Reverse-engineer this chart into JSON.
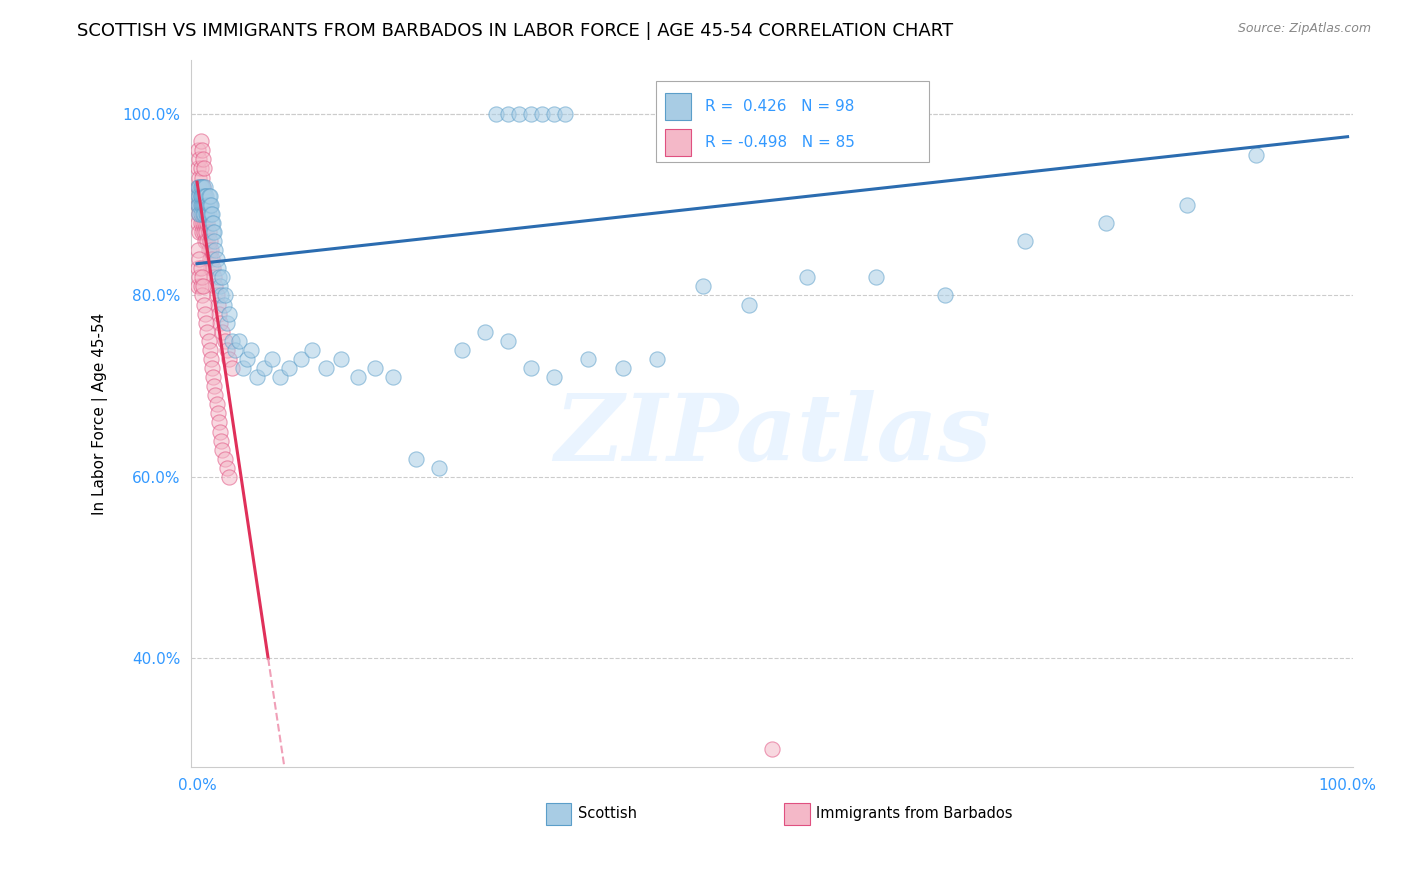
{
  "title": "SCOTTISH VS IMMIGRANTS FROM BARBADOS IN LABOR FORCE | AGE 45-54 CORRELATION CHART",
  "source": "Source: ZipAtlas.com",
  "ylabel": "In Labor Force | Age 45-54",
  "y_tick_labels": [
    "40.0%",
    "60.0%",
    "80.0%",
    "100.0%"
  ],
  "y_tick_values": [
    0.4,
    0.6,
    0.8,
    1.0
  ],
  "legend_label1": "Scottish",
  "legend_label2": "Immigrants from Barbados",
  "R1": 0.426,
  "N1": 98,
  "R2": -0.498,
  "N2": 85,
  "blue_color": "#a8cce4",
  "pink_color": "#f4b8c8",
  "blue_edge_color": "#5b9ec9",
  "pink_edge_color": "#e05080",
  "blue_line_color": "#2b6cb0",
  "pink_line_color": "#e0305a",
  "pink_line_dash_color": "#f0a0b8",
  "background_color": "#ffffff",
  "scatter_alpha": 0.55,
  "scatter_size": 120,
  "title_fontsize": 13,
  "blue_line_intercept": 0.835,
  "blue_line_slope": 0.14,
  "pink_line_intercept": 0.925,
  "pink_line_slope": -8.5,
  "blue_scatter_x": [
    0.001,
    0.001,
    0.001,
    0.002,
    0.002,
    0.002,
    0.002,
    0.003,
    0.003,
    0.003,
    0.003,
    0.003,
    0.004,
    0.004,
    0.004,
    0.005,
    0.005,
    0.005,
    0.005,
    0.006,
    0.006,
    0.006,
    0.007,
    0.007,
    0.007,
    0.008,
    0.008,
    0.008,
    0.009,
    0.009,
    0.01,
    0.01,
    0.01,
    0.011,
    0.011,
    0.012,
    0.012,
    0.013,
    0.013,
    0.014,
    0.014,
    0.015,
    0.015,
    0.016,
    0.017,
    0.018,
    0.019,
    0.02,
    0.021,
    0.022,
    0.023,
    0.024,
    0.026,
    0.028,
    0.03,
    0.033,
    0.036,
    0.04,
    0.043,
    0.047,
    0.052,
    0.058,
    0.065,
    0.072,
    0.08,
    0.09,
    0.1,
    0.112,
    0.125,
    0.14,
    0.155,
    0.17,
    0.19,
    0.21,
    0.23,
    0.25,
    0.27,
    0.29,
    0.31,
    0.34,
    0.37,
    0.4,
    0.44,
    0.48,
    0.53,
    0.59,
    0.65,
    0.72,
    0.79,
    0.86,
    0.26,
    0.27,
    0.28,
    0.29,
    0.3,
    0.31,
    0.32,
    0.92
  ],
  "blue_scatter_y": [
    0.92,
    0.9,
    0.91,
    0.91,
    0.9,
    0.92,
    0.89,
    0.91,
    0.9,
    0.92,
    0.89,
    0.91,
    0.9,
    0.92,
    0.91,
    0.9,
    0.91,
    0.89,
    0.92,
    0.9,
    0.91,
    0.89,
    0.9,
    0.92,
    0.91,
    0.89,
    0.9,
    0.91,
    0.9,
    0.89,
    0.9,
    0.91,
    0.89,
    0.9,
    0.91,
    0.89,
    0.9,
    0.88,
    0.89,
    0.87,
    0.88,
    0.87,
    0.86,
    0.85,
    0.84,
    0.83,
    0.82,
    0.81,
    0.8,
    0.82,
    0.79,
    0.8,
    0.77,
    0.78,
    0.75,
    0.74,
    0.75,
    0.72,
    0.73,
    0.74,
    0.71,
    0.72,
    0.73,
    0.71,
    0.72,
    0.73,
    0.74,
    0.72,
    0.73,
    0.71,
    0.72,
    0.71,
    0.62,
    0.61,
    0.74,
    0.76,
    0.75,
    0.72,
    0.71,
    0.73,
    0.72,
    0.73,
    0.81,
    0.79,
    0.82,
    0.82,
    0.8,
    0.86,
    0.88,
    0.9,
    1.0,
    1.0,
    1.0,
    1.0,
    1.0,
    1.0,
    1.0,
    0.955
  ],
  "pink_scatter_x": [
    0.001,
    0.001,
    0.001,
    0.001,
    0.001,
    0.002,
    0.002,
    0.002,
    0.002,
    0.002,
    0.003,
    0.003,
    0.003,
    0.003,
    0.004,
    0.004,
    0.004,
    0.004,
    0.005,
    0.005,
    0.005,
    0.006,
    0.006,
    0.006,
    0.007,
    0.007,
    0.007,
    0.008,
    0.008,
    0.009,
    0.009,
    0.01,
    0.01,
    0.011,
    0.011,
    0.012,
    0.012,
    0.013,
    0.014,
    0.015,
    0.016,
    0.017,
    0.018,
    0.019,
    0.02,
    0.022,
    0.024,
    0.026,
    0.028,
    0.03,
    0.001,
    0.001,
    0.001,
    0.002,
    0.002,
    0.003,
    0.003,
    0.004,
    0.004,
    0.005,
    0.006,
    0.007,
    0.008,
    0.009,
    0.01,
    0.011,
    0.012,
    0.013,
    0.014,
    0.015,
    0.016,
    0.017,
    0.018,
    0.019,
    0.02,
    0.021,
    0.022,
    0.024,
    0.026,
    0.028,
    0.003,
    0.004,
    0.005,
    0.006,
    0.5
  ],
  "pink_scatter_y": [
    0.96,
    0.94,
    0.92,
    0.9,
    0.88,
    0.95,
    0.93,
    0.91,
    0.89,
    0.87,
    0.94,
    0.92,
    0.9,
    0.88,
    0.93,
    0.91,
    0.89,
    0.87,
    0.92,
    0.9,
    0.88,
    0.91,
    0.89,
    0.87,
    0.9,
    0.88,
    0.86,
    0.89,
    0.87,
    0.88,
    0.86,
    0.87,
    0.85,
    0.86,
    0.84,
    0.85,
    0.83,
    0.84,
    0.83,
    0.82,
    0.81,
    0.8,
    0.79,
    0.78,
    0.77,
    0.76,
    0.75,
    0.74,
    0.73,
    0.72,
    0.85,
    0.83,
    0.81,
    0.84,
    0.82,
    0.83,
    0.81,
    0.82,
    0.8,
    0.81,
    0.79,
    0.78,
    0.77,
    0.76,
    0.75,
    0.74,
    0.73,
    0.72,
    0.71,
    0.7,
    0.69,
    0.68,
    0.67,
    0.66,
    0.65,
    0.64,
    0.63,
    0.62,
    0.61,
    0.6,
    0.97,
    0.96,
    0.95,
    0.94,
    0.3
  ]
}
